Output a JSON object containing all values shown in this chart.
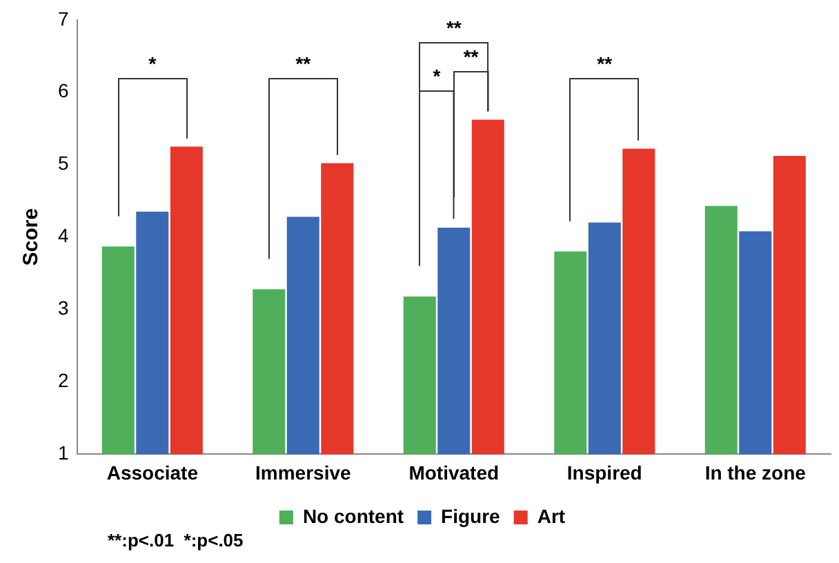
{
  "chart_data": {
    "type": "bar",
    "ylabel": "Score",
    "categories": [
      "Associate",
      "Immersive",
      "Motivated",
      "Inspired",
      "In the zone"
    ],
    "series": [
      {
        "name": "No content",
        "color": "#4faf5b",
        "values": [
          3.87,
          3.28,
          3.18,
          3.8,
          4.43
        ]
      },
      {
        "name": "Figure",
        "color": "#3a6ab4",
        "values": [
          4.35,
          4.28,
          4.13,
          4.2,
          4.08
        ]
      },
      {
        "name": "Art",
        "color": "#e5382b",
        "values": [
          5.25,
          5.02,
          5.62,
          5.22,
          5.12
        ]
      }
    ],
    "ylim": [
      1,
      7
    ],
    "yticks": [
      1,
      2,
      3,
      4,
      5,
      6,
      7
    ],
    "grid": false,
    "legend": "bottom",
    "annotations": [
      "*",
      "**",
      "**",
      "*",
      "**",
      "**",
      "**:p<.01  *:p<.05"
    ]
  }
}
